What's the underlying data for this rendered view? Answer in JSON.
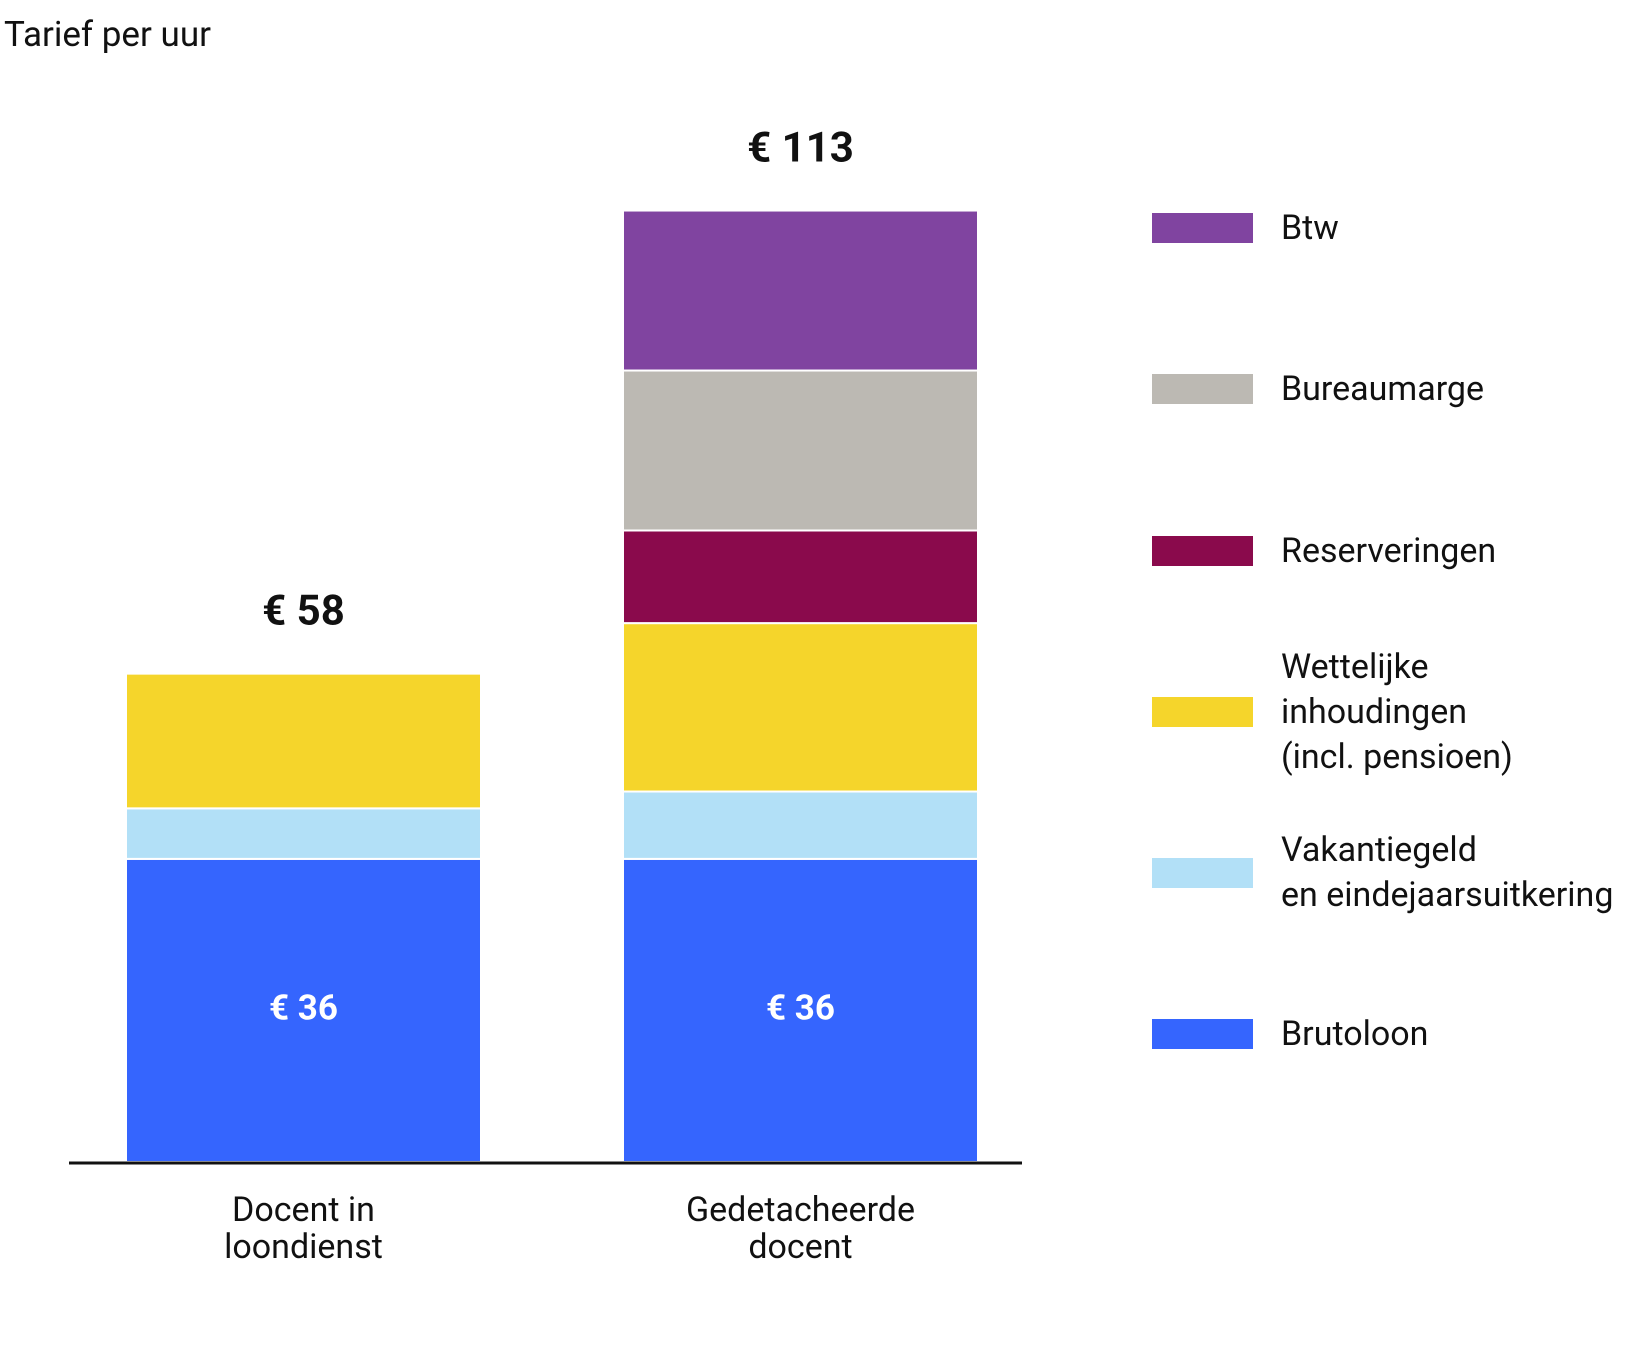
{
  "chart_data": {
    "type": "stacked_bar",
    "title": "Tarief per uur",
    "categories": [
      "Docent in\nloondienst",
      "Gedetacheerde\ndocent"
    ],
    "series": [
      {
        "name": "Brutoloon",
        "color": "#3565fe",
        "values": [
          36,
          36
        ],
        "value_labels": [
          "€ 36",
          "€ 36"
        ]
      },
      {
        "name": "Vakantiegeld\nen eindejaarsuitkering",
        "color": "#b2e0f7",
        "values": [
          6,
          8
        ]
      },
      {
        "name": "Wettelijke\ninhoudingen\n(incl. pensioen)",
        "color": "#f5d52b",
        "values": [
          16,
          20
        ]
      },
      {
        "name": "Reserveringen",
        "color": "#8a0a4c",
        "values": [
          null,
          11
        ]
      },
      {
        "name": "Bureaumarge",
        "color": "#bcb9b3",
        "values": [
          null,
          19
        ]
      },
      {
        "name": "Btw",
        "color": "#8044a0",
        "values": [
          null,
          19
        ]
      }
    ],
    "totals": [
      58,
      113
    ],
    "total_labels": [
      "€ 58",
      "€ 113"
    ]
  }
}
